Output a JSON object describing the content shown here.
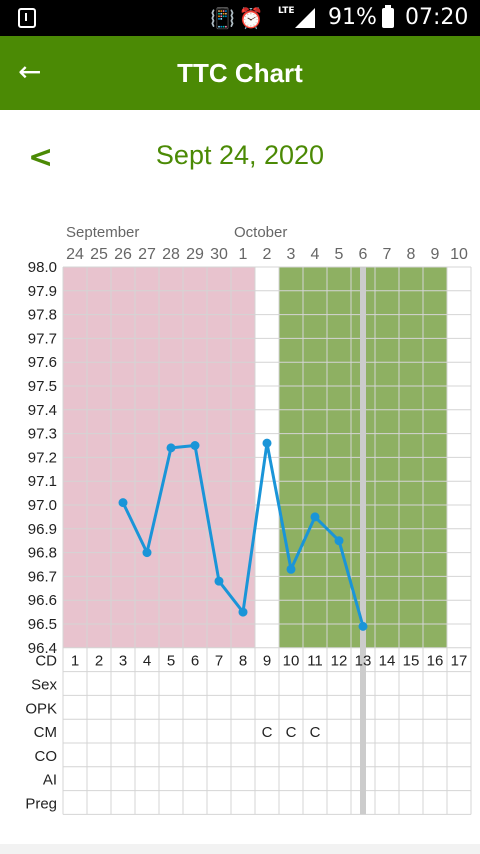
{
  "status_bar": {
    "battery": "91%",
    "time": "07:20",
    "network": "LTE"
  },
  "app_bar": {
    "title": "TTC Chart",
    "back_icon": "arrow-left-icon"
  },
  "date_nav": {
    "prev_label": "<",
    "date": "Sept 24, 2020"
  },
  "colors": {
    "brand": "#4b8a05",
    "period": "#e8c3ce",
    "fertile": "#8eb062",
    "line": "#1a95d8",
    "today": "#cccccc"
  },
  "chart_data": {
    "type": "line",
    "month_labels": [
      {
        "label": "September",
        "at_day_index": 0
      },
      {
        "label": "October",
        "at_day_index": 7
      }
    ],
    "dates": [
      "24",
      "25",
      "26",
      "27",
      "28",
      "29",
      "30",
      "1",
      "2",
      "3",
      "4",
      "5",
      "6",
      "7",
      "8",
      "9",
      "10"
    ],
    "cycle_days": [
      "1",
      "2",
      "3",
      "4",
      "5",
      "6",
      "7",
      "8",
      "9",
      "10",
      "11",
      "12",
      "13",
      "14",
      "15",
      "16",
      "17"
    ],
    "ylim": [
      96.4,
      98.0
    ],
    "y_ticks": [
      "98.0",
      "97.9",
      "97.8",
      "97.7",
      "97.6",
      "97.5",
      "97.4",
      "97.3",
      "97.2",
      "97.1",
      "97.0",
      "96.9",
      "96.8",
      "96.7",
      "96.6",
      "96.5",
      "96.4"
    ],
    "temperature": [
      {
        "cd": 3,
        "temp": 97.01
      },
      {
        "cd": 4,
        "temp": 96.8
      },
      {
        "cd": 5,
        "temp": 97.24
      },
      {
        "cd": 6,
        "temp": 97.25
      },
      {
        "cd": 7,
        "temp": 96.68
      },
      {
        "cd": 8,
        "temp": 96.55
      },
      {
        "cd": 9,
        "temp": 97.26
      },
      {
        "cd": 10,
        "temp": 96.73
      },
      {
        "cd": 11,
        "temp": 96.95
      },
      {
        "cd": 12,
        "temp": 96.85
      },
      {
        "cd": 13,
        "temp": 96.49
      }
    ],
    "period_range": [
      1,
      8
    ],
    "fertile_range": [
      10,
      16
    ],
    "today_cd": 13,
    "grid": true,
    "row_labels": {
      "cd": "CD",
      "sex": "Sex",
      "opk": "OPK",
      "cm": "CM",
      "co": "CO",
      "ai": "AI",
      "preg": "Preg"
    },
    "rows": {
      "sex": [
        "",
        "",
        "",
        "",
        "",
        "",
        "",
        "",
        "",
        "",
        "",
        "",
        "",
        "",
        "",
        "",
        ""
      ],
      "opk": [
        "",
        "",
        "",
        "",
        "",
        "",
        "",
        "",
        "",
        "",
        "",
        "",
        "",
        "",
        "",
        "",
        ""
      ],
      "cm": [
        "",
        "",
        "",
        "",
        "",
        "",
        "",
        "",
        "C",
        "C",
        "C",
        "",
        "",
        "",
        "",
        "",
        ""
      ],
      "co": [
        "",
        "",
        "",
        "",
        "",
        "",
        "",
        "",
        "",
        "",
        "",
        "",
        "",
        "",
        "",
        "",
        ""
      ],
      "ai": [
        "",
        "",
        "",
        "",
        "",
        "",
        "",
        "",
        "",
        "",
        "",
        "",
        "",
        "",
        "",
        "",
        ""
      ],
      "preg": [
        "",
        "",
        "",
        "",
        "",
        "",
        "",
        "",
        "",
        "",
        "",
        "",
        "",
        "",
        "",
        "",
        ""
      ]
    }
  }
}
